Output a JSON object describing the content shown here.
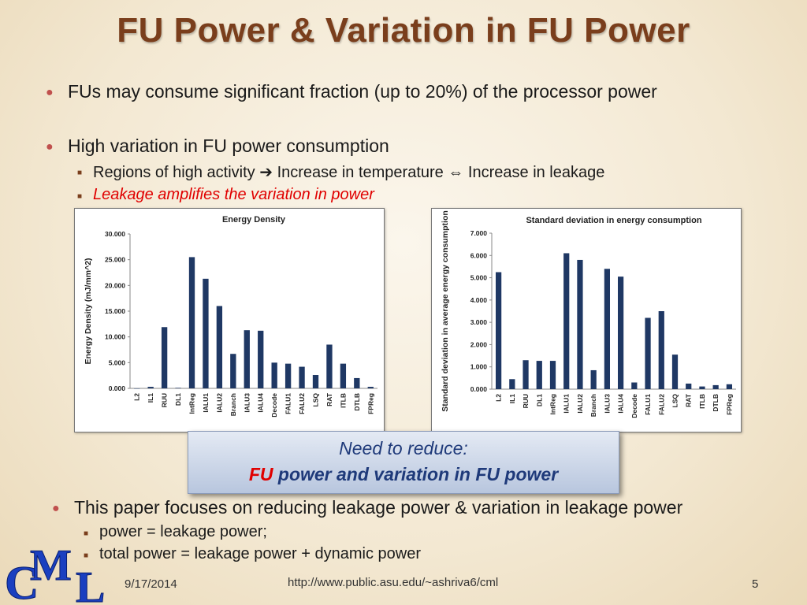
{
  "slide": {
    "title": "FU Power & Variation in FU Power",
    "bullet1": "FUs may consume significant fraction (up to 20%) of the processor power",
    "bullet2": "High variation in FU power consumption",
    "sub1_a": "Regions of high activity",
    "sub1_b": "Increase in temperature",
    "sub1_c": "Increase in leakage",
    "sub2": "Leakage amplifies the variation in power",
    "callout_line1": "Need to reduce:",
    "callout_fu": "FU",
    "callout_rest": " power and variation in FU power",
    "bullet3": "This paper focuses on reducing leakage power & variation in leakage power",
    "sub3": "power = leakage power;",
    "sub4": "total power = leakage power + dynamic power",
    "footer_date": "9/17/2014",
    "footer_url": "http://www.public.asu.edu/~ashriva6/cml",
    "footer_page": "5",
    "logo_text": "CML",
    "arrow_right": "➔",
    "arrow_both": "⇔"
  },
  "colors": {
    "bar": "#1f3864",
    "title": "#7a3e1c",
    "accent_red": "#e00000"
  },
  "chart_data": [
    {
      "type": "bar",
      "title": "Energy Density",
      "ylabel": "Energy Density (mJ/mm^2)",
      "xlabel": "",
      "categories": [
        "L2",
        "IL1",
        "RUU",
        "DL1",
        "IntReg",
        "IALU1",
        "IALU2",
        "Branch",
        "IALU3",
        "IALU4",
        "Decode",
        "FALU1",
        "FALU2",
        "LSQ",
        "RAT",
        "ITLB",
        "DTLB",
        "FPReg"
      ],
      "values": [
        0.0,
        0.3,
        11.9,
        0.1,
        25.5,
        21.3,
        16.0,
        6.7,
        11.3,
        11.2,
        5.0,
        4.8,
        4.2,
        2.6,
        8.5,
        4.8,
        2.0,
        0.3
      ],
      "ylim": [
        0,
        30
      ],
      "yticks": [
        "0.000",
        "5.000",
        "10.000",
        "15.000",
        "20.000",
        "25.000",
        "30.000"
      ],
      "grid": false
    },
    {
      "type": "bar",
      "title": "Standard deviation in energy consumption",
      "ylabel": "Standard deviation in average energy consumption",
      "xlabel": "",
      "categories": [
        "L2",
        "IL1",
        "RUU",
        "DL1",
        "IntReg",
        "IALU1",
        "IALU2",
        "Branch",
        "IALU3",
        "IALU4",
        "Decode",
        "FALU1",
        "FALU2",
        "LSQ",
        "RAT",
        "ITLB",
        "DTLB",
        "FPReg"
      ],
      "values": [
        5.25,
        0.45,
        1.3,
        1.27,
        1.27,
        6.1,
        5.8,
        0.85,
        5.4,
        5.05,
        0.3,
        3.2,
        3.5,
        1.55,
        0.25,
        0.12,
        0.18,
        0.22
      ],
      "ylim": [
        0,
        7
      ],
      "yticks": [
        "0.000",
        "1.000",
        "2.000",
        "3.000",
        "4.000",
        "5.000",
        "6.000",
        "7.000"
      ],
      "grid": false
    }
  ]
}
